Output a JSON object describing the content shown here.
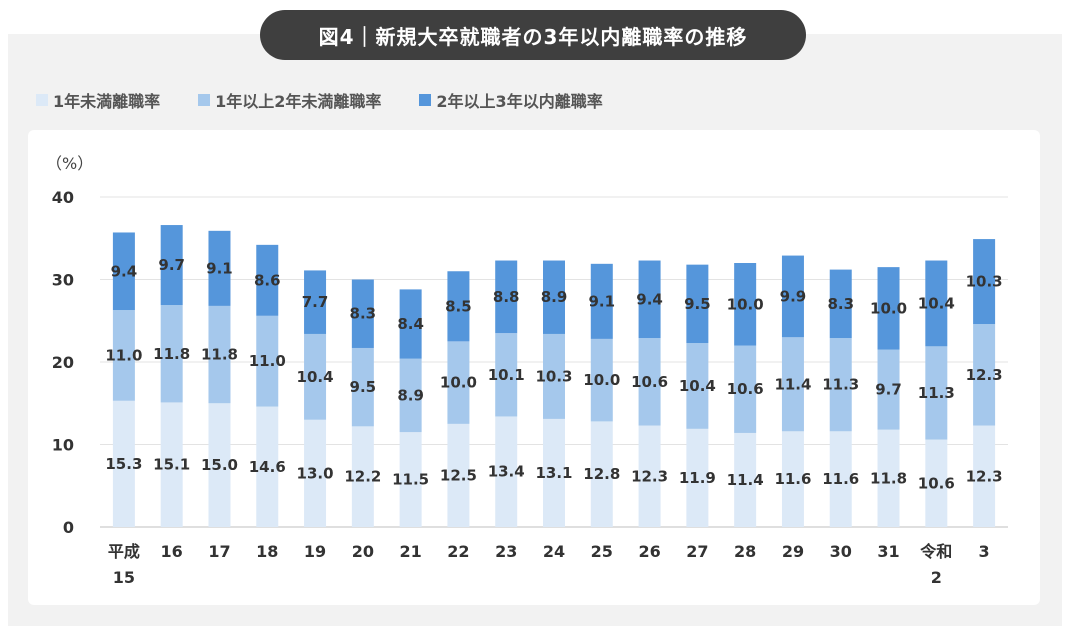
{
  "title": "図4｜新規大卒就職者の3年以内離職率の推移",
  "unit_label": "（%）",
  "legend": [
    {
      "label": "1年未満離職率",
      "color": "#dce9f7"
    },
    {
      "label": "1年以上2年未満離職率",
      "color": "#a5c8ec"
    },
    {
      "label": "2年以上3年以内離職率",
      "color": "#5596db"
    }
  ],
  "chart_data": {
    "type": "bar",
    "stacked": true,
    "categories": [
      [
        "平成",
        "15"
      ],
      [
        "16"
      ],
      [
        "17"
      ],
      [
        "18"
      ],
      [
        "19"
      ],
      [
        "20"
      ],
      [
        "21"
      ],
      [
        "22"
      ],
      [
        "23"
      ],
      [
        "24"
      ],
      [
        "25"
      ],
      [
        "26"
      ],
      [
        "27"
      ],
      [
        "28"
      ],
      [
        "29"
      ],
      [
        "30"
      ],
      [
        "31"
      ],
      [
        "令和",
        "2"
      ],
      [
        "3"
      ]
    ],
    "series": [
      {
        "name": "1年未満離職率",
        "color": "#dce9f7",
        "values": [
          15.3,
          15.1,
          15.0,
          14.6,
          13.0,
          12.2,
          11.5,
          12.5,
          13.4,
          13.1,
          12.8,
          12.3,
          11.9,
          11.4,
          11.6,
          11.6,
          11.8,
          10.6,
          12.3
        ]
      },
      {
        "name": "1年以上2年未満離職率",
        "color": "#a5c8ec",
        "values": [
          11.0,
          11.8,
          11.8,
          11.0,
          10.4,
          9.5,
          8.9,
          10.0,
          10.1,
          10.3,
          10.0,
          10.6,
          10.4,
          10.6,
          11.4,
          11.3,
          9.7,
          11.3,
          12.3
        ]
      },
      {
        "name": "2年以上3年以内離職率",
        "color": "#5596db",
        "values": [
          9.4,
          9.7,
          9.1,
          8.6,
          7.7,
          8.3,
          8.4,
          8.5,
          8.8,
          8.9,
          9.1,
          9.4,
          9.5,
          10.0,
          9.9,
          8.3,
          10.0,
          10.4,
          10.3
        ]
      }
    ],
    "yticks": [
      0,
      10,
      20,
      30,
      40
    ],
    "ylim": [
      0,
      40
    ],
    "grid": true,
    "legend_position": "top-left"
  }
}
